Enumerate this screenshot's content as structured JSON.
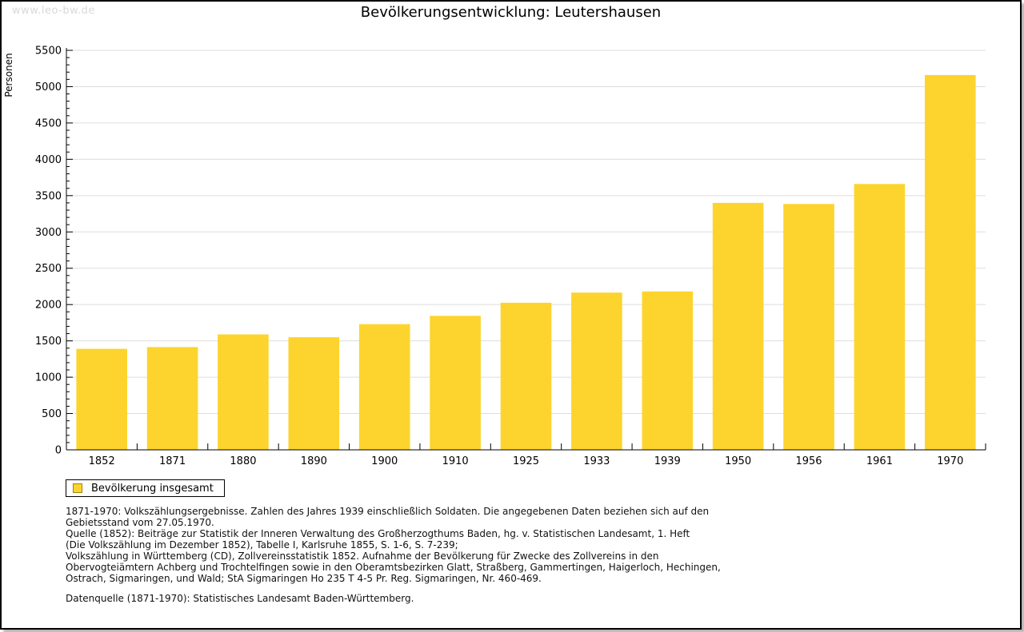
{
  "watermark": "www.leo-bw.de",
  "chart_data": {
    "type": "bar",
    "title": "Bevölkerungsentwicklung: Leutershausen",
    "xlabel": "",
    "ylabel": "Personen",
    "categories": [
      "1852",
      "1871",
      "1880",
      "1890",
      "1900",
      "1910",
      "1925",
      "1933",
      "1939",
      "1950",
      "1956",
      "1961",
      "1970"
    ],
    "values": [
      1390,
      1415,
      1590,
      1550,
      1730,
      1845,
      2025,
      2165,
      2180,
      3400,
      3385,
      3660,
      5160
    ],
    "ylim": [
      0,
      5500
    ],
    "ytick_step": 500,
    "yminor_step": 100,
    "grid": true,
    "legend_position": "bottom-left",
    "legend": [
      {
        "label": "Bevölkerung insgesamt",
        "color": "#fcd42d"
      }
    ],
    "colors": {
      "bar_fill": "#fcd42d",
      "swatch_border": "#a3830b",
      "gridline": "#dddddd",
      "axis": "#000000"
    }
  },
  "footnotes": [
    "1871-1970: Volkszählungsergebnisse. Zahlen des Jahres 1939 einschließlich Soldaten. Die angegebenen Daten beziehen sich auf den",
    "Gebietsstand vom 27.05.1970.",
    "Quelle (1852): Beiträge zur Statistik der Inneren Verwaltung des Großherzogthums Baden, hg. v. Statistischen Landesamt, 1. Heft",
    "(Die Volkszählung im Dezember 1852), Tabelle I, Karlsruhe 1855, S. 1-6, S. 7-239;",
    "Volkszählung in Württemberg (CD), Zollvereinsstatistik 1852. Aufnahme der Bevölkerung für Zwecke des Zollvereins in den",
    "Obervogteiämtern Achberg und Trochtelfingen sowie in den Oberamtsbezirken Glatt, Straßberg, Gammertingen, Haigerloch, Hechingen,",
    "Ostrach, Sigmaringen, und Wald; StA Sigmaringen Ho 235 T 4-5 Pr. Reg. Sigmaringen, Nr. 460-469."
  ],
  "datasource": "Datenquelle (1871-1970): Statistisches Landesamt Baden-Württemberg."
}
